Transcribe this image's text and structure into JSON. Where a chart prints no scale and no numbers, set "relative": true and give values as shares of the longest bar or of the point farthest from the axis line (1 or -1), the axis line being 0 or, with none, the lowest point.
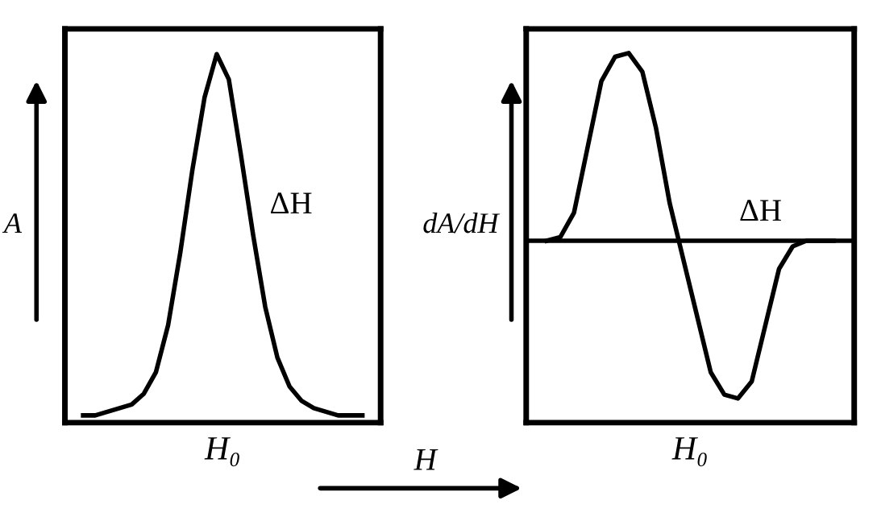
{
  "chart_data": [
    {
      "type": "line",
      "relative": true,
      "ylabel": "A",
      "xlabel": "H₀",
      "annotations": [
        "ΔH"
      ],
      "categories": [
        null,
        null,
        null,
        null,
        null,
        null,
        null,
        null,
        null,
        null,
        null,
        null,
        null,
        null,
        null,
        null,
        null,
        null,
        null,
        null,
        null,
        null,
        null,
        null
      ],
      "series": [
        {
          "color": "#000000",
          "values": [
            0,
            0,
            0.01,
            0.02,
            0.03,
            0.06,
            0.12,
            0.25,
            0.45,
            0.68,
            0.88,
            1.0,
            0.93,
            0.72,
            0.5,
            0.3,
            0.16,
            0.08,
            0.04,
            0.02,
            0.01,
            0,
            0,
            0
          ]
        }
      ]
    },
    {
      "type": "line",
      "relative": true,
      "ylabel": "dA/dH",
      "xlabel": "H₀",
      "annotations": [
        "ΔH",
        "H"
      ],
      "categories": [
        null,
        null,
        null,
        null,
        null,
        null,
        null,
        null,
        null,
        null,
        null,
        null,
        null,
        null,
        null,
        null,
        null,
        null,
        null,
        null,
        null,
        null
      ],
      "series": [
        {
          "color": "#000000",
          "values": [
            0,
            0.02,
            0.15,
            0.5,
            0.85,
            0.98,
            1.0,
            0.9,
            0.6,
            0.2,
            -0.1,
            -0.4,
            -0.7,
            -0.82,
            -0.84,
            -0.75,
            -0.45,
            -0.15,
            -0.03,
            0,
            0,
            0
          ]
        }
      ]
    }
  ]
}
